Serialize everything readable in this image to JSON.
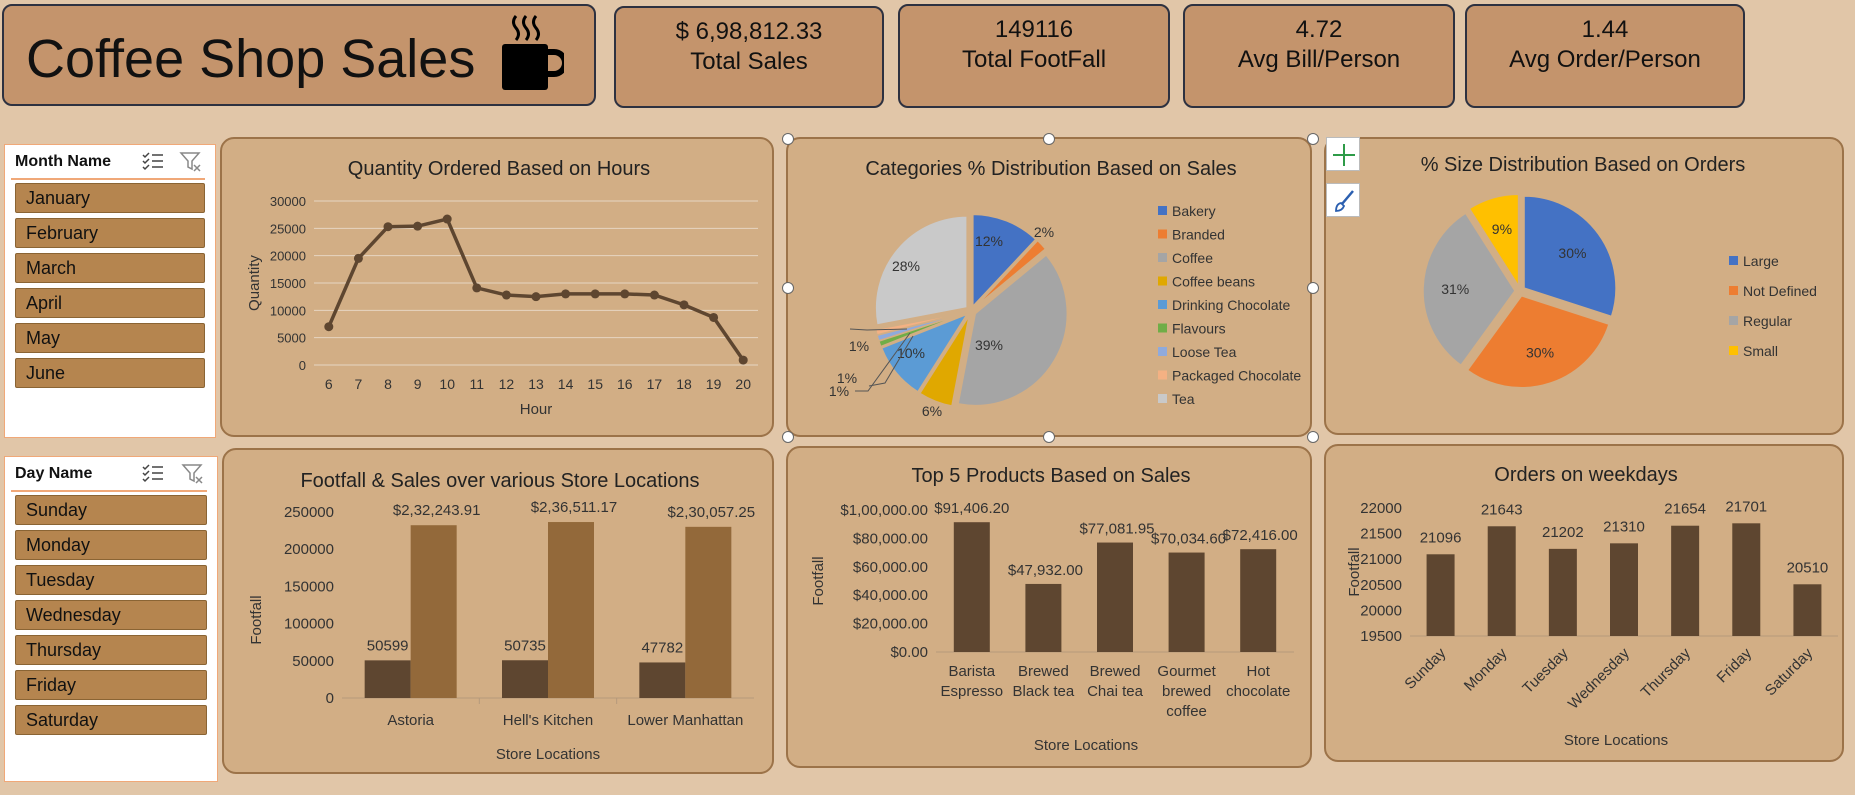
{
  "dashboard": {
    "title": "Coffee Shop Sales",
    "icon": "coffee-cup-icon",
    "colors": {
      "background": "#e1c6a8",
      "panel": "#d2ae85",
      "kpi": "#c4946c",
      "dark_bar": "#5e4630",
      "light_bar": "#93693a",
      "slicer_item": "#b5854f"
    }
  },
  "kpis": [
    {
      "value": "$ 6,98,812.33",
      "label": "Total Sales"
    },
    {
      "value": "149116",
      "label": "Total FootFall"
    },
    {
      "value": "4.72",
      "label": "Avg Bill/Person"
    },
    {
      "value": "1.44",
      "label": "Avg Order/Person"
    }
  ],
  "slicers": {
    "month": {
      "header": "Month Name",
      "items": [
        "January",
        "February",
        "March",
        "April",
        "May",
        "June"
      ]
    },
    "day": {
      "header": "Day Name",
      "items": [
        "Sunday",
        "Monday",
        "Tuesday",
        "Wednesday",
        "Thursday",
        "Friday",
        "Saturday"
      ]
    }
  },
  "chart_data": [
    {
      "id": "hours",
      "type": "line",
      "title": "Quantity Ordered Based on Hours",
      "xlabel": "Hour",
      "ylabel": "Quantity",
      "x": [
        6,
        7,
        8,
        9,
        10,
        11,
        12,
        13,
        14,
        15,
        16,
        17,
        18,
        19,
        20
      ],
      "values": [
        7000,
        19500,
        25300,
        25400,
        26700,
        14100,
        12800,
        12500,
        13000,
        13000,
        13000,
        12800,
        11000,
        8700,
        900
      ],
      "ylim": [
        0,
        30000
      ],
      "yticks": [
        0,
        5000,
        10000,
        15000,
        20000,
        25000,
        30000
      ],
      "grid": true,
      "color": "#5e4630"
    },
    {
      "id": "categories",
      "type": "pie",
      "title": "Categories % Distribution Based on Sales",
      "labels": [
        "Bakery",
        "Branded",
        "Coffee",
        "Coffee beans",
        "Drinking Chocolate",
        "Flavours",
        "Loose Tea",
        "Packaged Chocolate",
        "Tea"
      ],
      "values": [
        12,
        2,
        39,
        6,
        10,
        1,
        1,
        1,
        28
      ],
      "data_labels": [
        "12%",
        "2%",
        "39%",
        "6%",
        "10%",
        "1%",
        "1%",
        "1%",
        "28%"
      ],
      "colors": [
        "#4472c4",
        "#ed7d31",
        "#a5a5a5",
        "#e0a800",
        "#5b9bd5",
        "#70ad47",
        "#8faadc",
        "#f4b183",
        "#c9c9c9"
      ],
      "legend": "right"
    },
    {
      "id": "sizes",
      "type": "pie",
      "title": "% Size Distribution Based on Orders",
      "labels": [
        "Large",
        "Not Defined",
        "Regular",
        "Small"
      ],
      "values": [
        30,
        30,
        31,
        9
      ],
      "data_labels": [
        "30%",
        "30%",
        "31%",
        "9%"
      ],
      "colors": [
        "#4472c4",
        "#ed7d31",
        "#a5a5a5",
        "#ffc000"
      ],
      "legend": "right"
    },
    {
      "id": "locations",
      "type": "bar",
      "title": "Footfall & Sales over various Store Locations",
      "xlabel": "Store Locations",
      "ylabel": "Footfall",
      "categories": [
        "Astoria",
        "Hell's Kitchen",
        "Lower Manhattan"
      ],
      "series": [
        {
          "values": [
            50599,
            50735,
            47782
          ],
          "labels": [
            "50599",
            "50735",
            "47782"
          ],
          "color": "#5e4630"
        },
        {
          "values": [
            232243.91,
            236511.17,
            230057.25
          ],
          "labels": [
            "$2,32,243.91",
            "$2,36,511.17",
            "$2,30,057.25"
          ],
          "color": "#93693a"
        }
      ],
      "ylim": [
        0,
        250000
      ],
      "yticks": [
        0,
        50000,
        100000,
        150000,
        200000,
        250000
      ]
    },
    {
      "id": "products",
      "type": "bar",
      "title": "Top 5 Products Based on Sales",
      "xlabel": "Store Locations",
      "ylabel": "Footfall",
      "categories": [
        [
          "Barista",
          "Espresso"
        ],
        [
          "Brewed",
          "Black tea"
        ],
        [
          "Brewed",
          "Chai tea"
        ],
        [
          "Gourmet",
          "brewed",
          "coffee"
        ],
        [
          "Hot",
          "chocolate"
        ]
      ],
      "values": [
        91406.2,
        47932.0,
        77081.95,
        70034.6,
        72416.0
      ],
      "labels": [
        "$91,406.20",
        "$47,932.00",
        "$77,081.95",
        "$70,034.60",
        "$72,416.00"
      ],
      "ylim": [
        0,
        100000
      ],
      "yticks": [
        "$0.00",
        "$20,000.00",
        "$40,000.00",
        "$60,000.00",
        "$80,000.00",
        "$1,00,000.00"
      ],
      "color": "#5e4630"
    },
    {
      "id": "weekdays",
      "type": "bar",
      "title": "Orders on weekdays",
      "xlabel": "Store Locations",
      "ylabel": "Footfall",
      "categories": [
        "Sunday",
        "Monday",
        "Tuesday",
        "Wednesday",
        "Thursday",
        "Friday",
        "Saturday"
      ],
      "values": [
        21096,
        21643,
        21202,
        21310,
        21654,
        21701,
        20510
      ],
      "labels": [
        "21096",
        "21643",
        "21202",
        "21310",
        "21654",
        "21701",
        "20510"
      ],
      "ylim": [
        19500,
        22000
      ],
      "yticks": [
        19500,
        20000,
        20500,
        21000,
        21500,
        22000
      ],
      "color": "#5e4630"
    }
  ]
}
